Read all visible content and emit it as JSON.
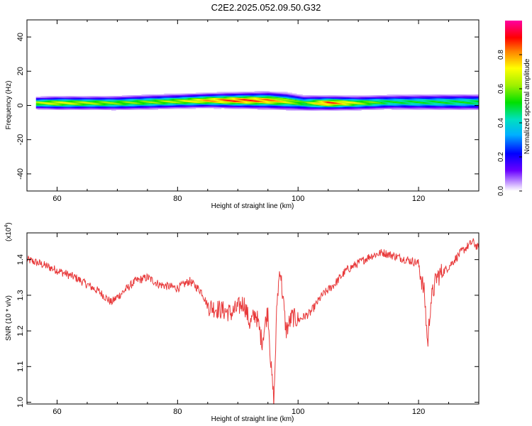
{
  "figure_title": "C2E2.2025.052.09.50.G32",
  "chart_data": [
    {
      "type": "heatmap",
      "xlabel": "Height of straight line (km)",
      "ylabel": "Frequency (Hz)",
      "xlim": [
        55,
        130
      ],
      "ylim": [
        -50,
        50
      ],
      "xticks": [
        60,
        80,
        100,
        120
      ],
      "yticks": [
        -40,
        -20,
        0,
        20,
        40
      ],
      "colorbar": {
        "label": "Normalized spectral amplitude",
        "range": [
          0.0,
          1.0
        ],
        "ticks": [
          "0.0",
          "0.2",
          "0.4",
          "0.6",
          "0.8"
        ]
      },
      "ridge": [
        {
          "x": 56.5,
          "center": 1.5,
          "halfwidth": 2.0,
          "amp": 0.7
        },
        {
          "x": 60,
          "center": 1.5,
          "halfwidth": 2.2,
          "amp": 0.75
        },
        {
          "x": 65,
          "center": 1.5,
          "halfwidth": 2.2,
          "amp": 0.7
        },
        {
          "x": 70,
          "center": 1.5,
          "halfwidth": 2.3,
          "amp": 0.65
        },
        {
          "x": 75,
          "center": 2.0,
          "halfwidth": 2.4,
          "amp": 0.65
        },
        {
          "x": 80,
          "center": 2.5,
          "halfwidth": 2.4,
          "amp": 0.7
        },
        {
          "x": 85,
          "center": 3.0,
          "halfwidth": 2.4,
          "amp": 0.85
        },
        {
          "x": 90,
          "center": 3.0,
          "halfwidth": 2.6,
          "amp": 0.95
        },
        {
          "x": 95,
          "center": 3.0,
          "halfwidth": 2.8,
          "amp": 0.9
        },
        {
          "x": 98,
          "center": 2.5,
          "halfwidth": 2.8,
          "amp": 0.75
        },
        {
          "x": 101,
          "center": 1.5,
          "halfwidth": 2.5,
          "amp": 0.6
        },
        {
          "x": 105,
          "center": 1.5,
          "halfwidth": 2.3,
          "amp": 0.95
        },
        {
          "x": 110,
          "center": 1.5,
          "halfwidth": 2.3,
          "amp": 0.7
        },
        {
          "x": 115,
          "center": 2.0,
          "halfwidth": 2.4,
          "amp": 0.55
        },
        {
          "x": 120,
          "center": 2.0,
          "halfwidth": 2.5,
          "amp": 0.55
        },
        {
          "x": 125,
          "center": 2.0,
          "halfwidth": 2.6,
          "amp": 0.55
        },
        {
          "x": 130,
          "center": 2.0,
          "halfwidth": 2.6,
          "amp": 0.55
        }
      ]
    },
    {
      "type": "line",
      "xlabel": "Height of straight line (km)",
      "ylabel": "SNR (10 * v/v)",
      "yscale_label_base": "(x10",
      "yscale_label_exp": "4",
      "yscale_label_tail": ")",
      "xlim": [
        55,
        130
      ],
      "ylim": [
        0.995,
        1.475
      ],
      "xticks": [
        60,
        80,
        100,
        120
      ],
      "yticks": [
        1.0,
        1.1,
        1.2,
        1.3,
        1.4
      ],
      "color": "#e8393a",
      "x": [
        55,
        57,
        60,
        63,
        65,
        67,
        69,
        71,
        73,
        75,
        77,
        80,
        82,
        84,
        85,
        87,
        89,
        91,
        92,
        93,
        94,
        95,
        95.5,
        96,
        96.5,
        97,
        98,
        99,
        100,
        102,
        104,
        106,
        108,
        110,
        112,
        114,
        116,
        118,
        120,
        121,
        121.5,
        122,
        123,
        125,
        127,
        129,
        130
      ],
      "y": [
        1.4,
        1.39,
        1.37,
        1.35,
        1.33,
        1.31,
        1.28,
        1.31,
        1.34,
        1.35,
        1.33,
        1.32,
        1.34,
        1.31,
        1.27,
        1.26,
        1.25,
        1.28,
        1.22,
        1.25,
        1.17,
        1.26,
        1.1,
        1.0,
        1.28,
        1.38,
        1.2,
        1.24,
        1.23,
        1.25,
        1.3,
        1.33,
        1.37,
        1.39,
        1.41,
        1.42,
        1.41,
        1.4,
        1.39,
        1.3,
        1.16,
        1.28,
        1.35,
        1.38,
        1.42,
        1.45,
        1.43
      ]
    }
  ]
}
